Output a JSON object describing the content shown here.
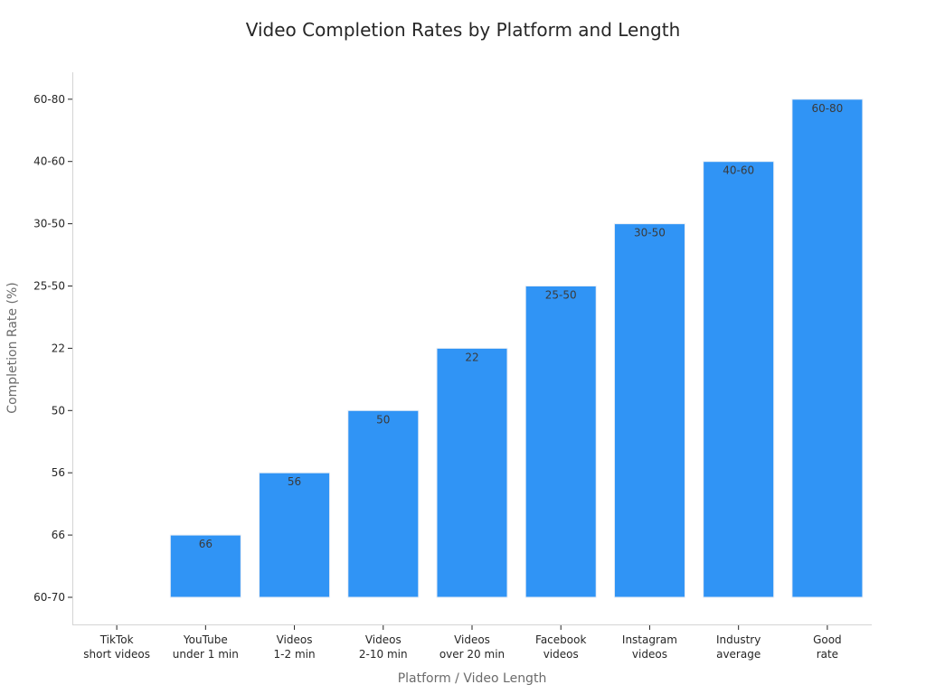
{
  "chart_data": {
    "type": "bar",
    "title": "Video Completion Rates by Platform and Length",
    "xlabel": "Platform / Video Length",
    "ylabel": "Completion Rate (%)",
    "categories": [
      [
        "TikTok",
        "short videos"
      ],
      [
        "YouTube",
        "under 1 min"
      ],
      [
        "Videos",
        "1-2 min"
      ],
      [
        "Videos",
        "2-10 min"
      ],
      [
        "Videos",
        "over 20 min"
      ],
      [
        "Facebook",
        "videos"
      ],
      [
        "Instagram",
        "videos"
      ],
      [
        "Industry",
        "average"
      ],
      [
        "Good",
        "rate"
      ]
    ],
    "y_categories": [
      "60-70",
      "66",
      "56",
      "50",
      "22",
      "25-50",
      "30-50",
      "40-60",
      "60-80"
    ],
    "values": [
      "60-70",
      "66",
      "56",
      "50",
      "22",
      "25-50",
      "30-50",
      "40-60",
      "60-80"
    ],
    "data_labels": [
      "",
      "66",
      "56",
      "50",
      "22",
      "25-50",
      "30-50",
      "40-60",
      "60-80"
    ],
    "bar_color": "#3094f5",
    "bar_edge_color": "#e8eef5",
    "grid": false,
    "legend": "none"
  }
}
